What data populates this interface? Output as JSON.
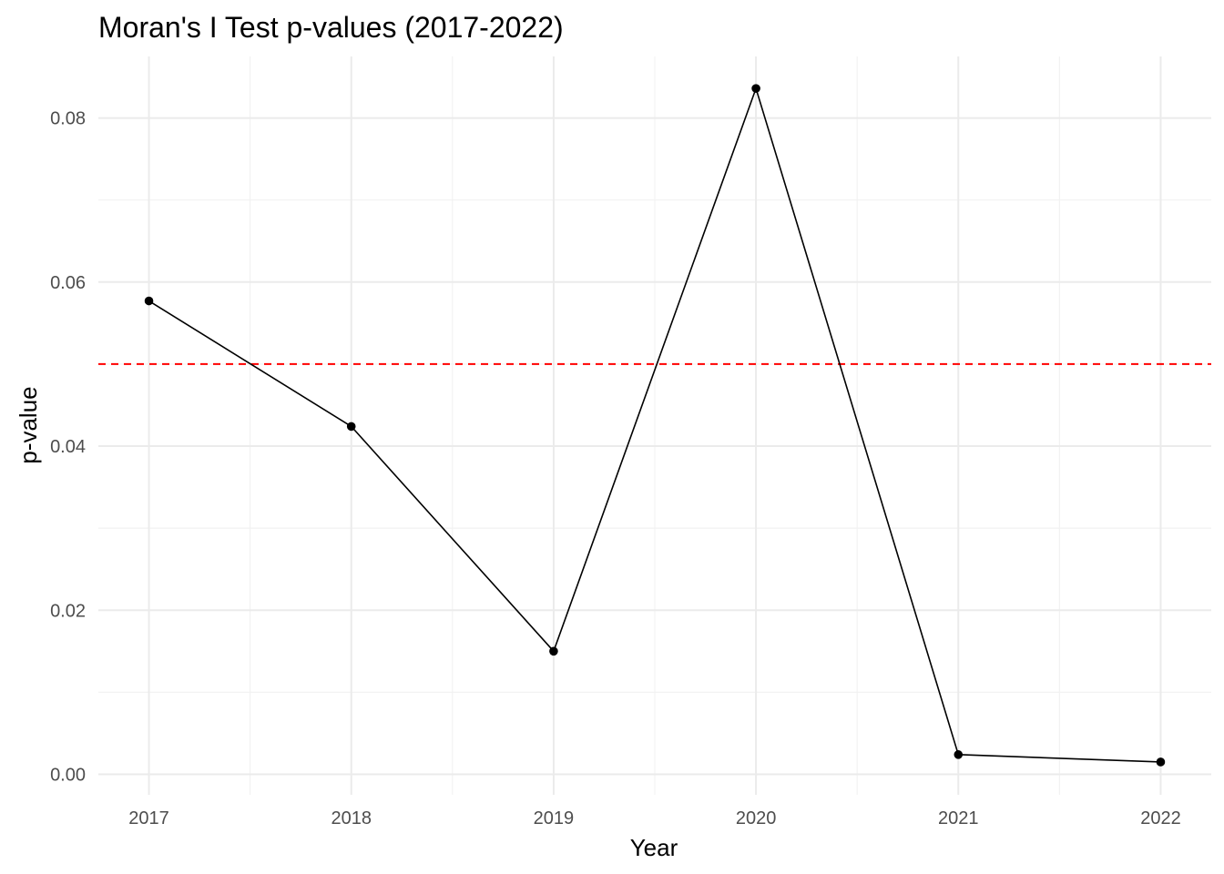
{
  "chart_data": {
    "type": "line",
    "title": "Moran's I Test p-values (2017-2022)",
    "xlabel": "Year",
    "ylabel": "p-value",
    "x": [
      2017,
      2018,
      2019,
      2020,
      2021,
      2022
    ],
    "x_tick_labels": [
      "2017",
      "2018",
      "2019",
      "2020",
      "2021",
      "2022"
    ],
    "series": [
      {
        "values": [
          0.0577,
          0.0424,
          0.015,
          0.0836,
          0.0024,
          0.0015
        ],
        "color": "#000000",
        "markers": true
      }
    ],
    "y_ticks": [
      0.0,
      0.02,
      0.04,
      0.06,
      0.08
    ],
    "y_tick_labels": [
      "0.00",
      "0.02",
      "0.04",
      "0.06",
      "0.08"
    ],
    "xlim": [
      2016.75,
      2022.25
    ],
    "ylim": [
      -0.0025,
      0.0875
    ],
    "reference_line": {
      "y": 0.05,
      "color": "#ff0000",
      "style": "dashed"
    },
    "grid": true,
    "legend": "none",
    "colors": {
      "background": "#ffffff",
      "grid_major": "#ebebeb",
      "grid_minor": "#f2f2f2",
      "line": "#000000",
      "reference": "#ff0000",
      "tick_text": "#4d4d4d"
    }
  }
}
